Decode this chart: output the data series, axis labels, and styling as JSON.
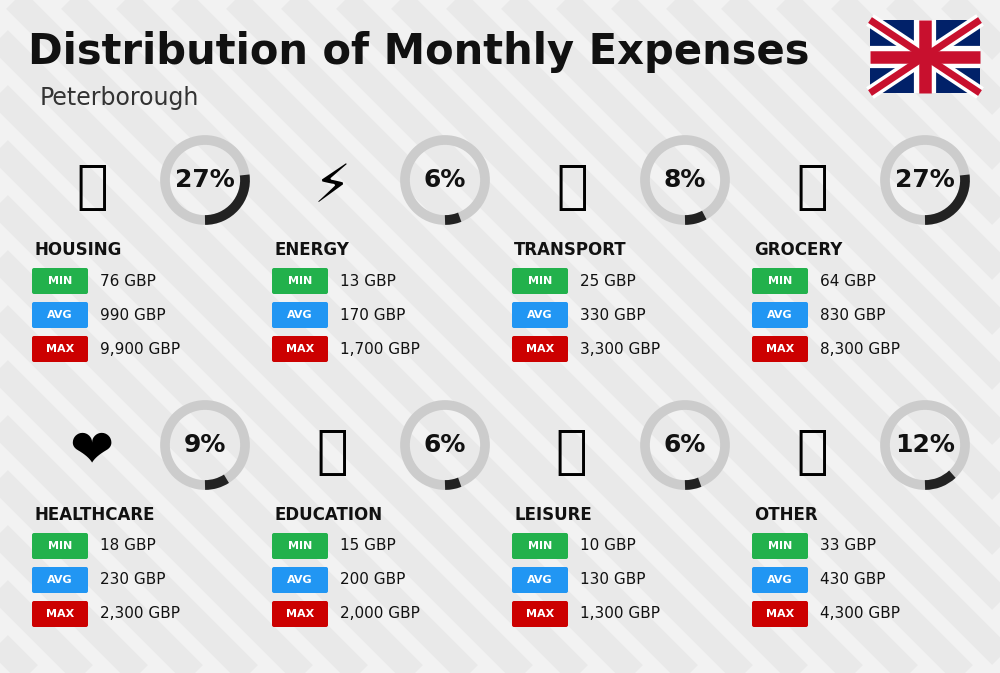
{
  "title": "Distribution of Monthly Expenses",
  "subtitle": "Peterborough",
  "background_color": "#f2f2f2",
  "stripe_color": "#e8e8e8",
  "categories": [
    {
      "name": "HOUSING",
      "percent": 27,
      "min": "76 GBP",
      "avg": "990 GBP",
      "max": "9,900 GBP",
      "icon": "🏢",
      "row": 0,
      "col": 0
    },
    {
      "name": "ENERGY",
      "percent": 6,
      "min": "13 GBP",
      "avg": "170 GBP",
      "max": "1,700 GBP",
      "icon": "⚡",
      "row": 0,
      "col": 1
    },
    {
      "name": "TRANSPORT",
      "percent": 8,
      "min": "25 GBP",
      "avg": "330 GBP",
      "max": "3,300 GBP",
      "icon": "🚌",
      "row": 0,
      "col": 2
    },
    {
      "name": "GROCERY",
      "percent": 27,
      "min": "64 GBP",
      "avg": "830 GBP",
      "max": "8,300 GBP",
      "icon": "🛒",
      "row": 0,
      "col": 3
    },
    {
      "name": "HEALTHCARE",
      "percent": 9,
      "min": "18 GBP",
      "avg": "230 GBP",
      "max": "2,300 GBP",
      "icon": "❤️",
      "row": 1,
      "col": 0
    },
    {
      "name": "EDUCATION",
      "percent": 6,
      "min": "15 GBP",
      "avg": "200 GBP",
      "max": "2,000 GBP",
      "icon": "🎓",
      "row": 1,
      "col": 1
    },
    {
      "name": "LEISURE",
      "percent": 6,
      "min": "10 GBP",
      "avg": "130 GBP",
      "max": "1,300 GBP",
      "icon": "🛍️",
      "row": 1,
      "col": 2
    },
    {
      "name": "OTHER",
      "percent": 12,
      "min": "33 GBP",
      "avg": "430 GBP",
      "max": "4,300 GBP",
      "icon": "💰",
      "row": 1,
      "col": 3
    }
  ],
  "min_color": "#22b14c",
  "avg_color": "#2196f3",
  "max_color": "#cc0000",
  "donut_dark_color": "#222222",
  "donut_light_color": "#cccccc",
  "title_fontsize": 30,
  "subtitle_fontsize": 17,
  "category_fontsize": 12,
  "value_fontsize": 11,
  "percent_fontsize": 18,
  "badge_label_fontsize": 8
}
